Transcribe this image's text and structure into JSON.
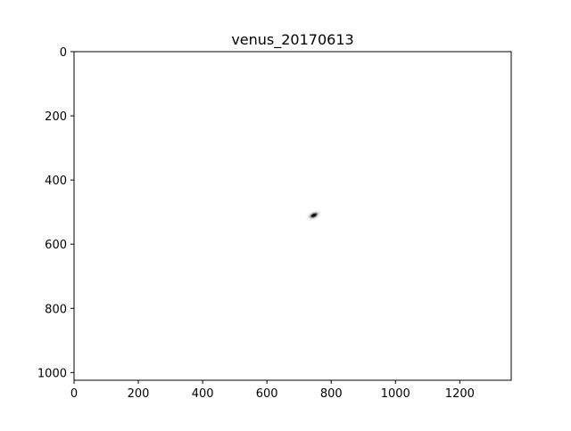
{
  "chart_data": {
    "type": "image",
    "title": "venus_20170613",
    "xlabel": "",
    "ylabel": "",
    "xlim": [
      0,
      1360
    ],
    "ylim": [
      1024,
      0
    ],
    "x_ticks": [
      0,
      200,
      400,
      600,
      800,
      1000,
      1200
    ],
    "y_ticks": [
      0,
      200,
      400,
      600,
      800,
      1000
    ],
    "colormap": "gray_r",
    "grid": false,
    "background_color": "#ffffff",
    "features": [
      {
        "kind": "blob",
        "center_x": 746,
        "center_y": 510,
        "radius_x": 20,
        "radius_y": 11,
        "angle_deg": -25,
        "intensity": 1.0
      }
    ]
  }
}
